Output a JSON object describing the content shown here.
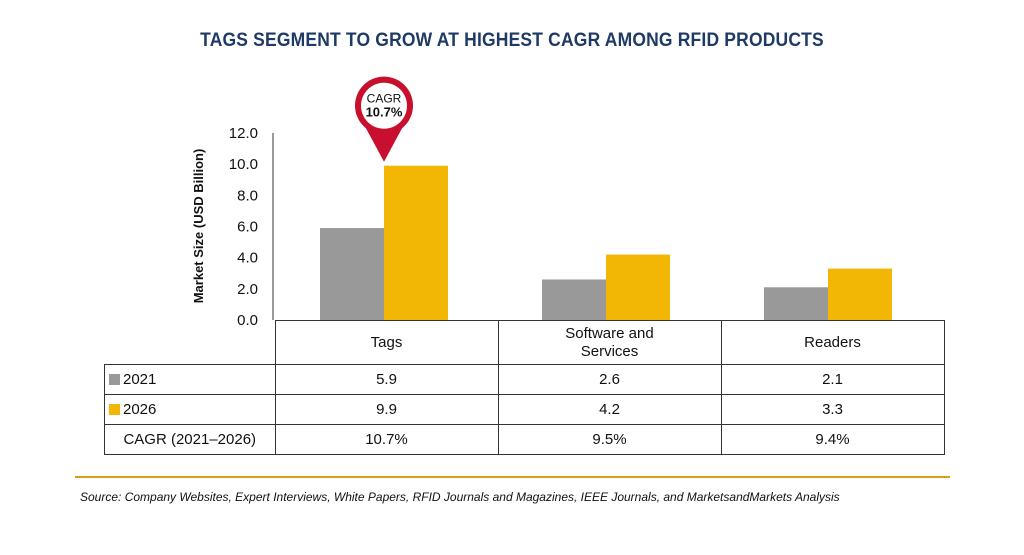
{
  "title": "TAGS SEGMENT TO GROW AT HIGHEST CAGR AMONG RFID PRODUCTS",
  "chart_data": {
    "type": "bar",
    "categories": [
      "Tags",
      "Software and\nServices",
      "Readers"
    ],
    "category_lines": [
      [
        "Tags"
      ],
      [
        "Software and",
        "Services"
      ],
      [
        "Readers"
      ]
    ],
    "series": [
      {
        "name": "2021",
        "values": [
          5.9,
          2.6,
          2.1
        ],
        "color": "#999999"
      },
      {
        "name": "2026",
        "values": [
          9.9,
          4.2,
          3.3
        ],
        "color": "#f2b705"
      }
    ],
    "ylabel": "Market Size (USD Billion)",
    "ylim": [
      0,
      12
    ],
    "yticks": [
      "0.0",
      "2.0",
      "4.0",
      "6.0",
      "8.0",
      "10.0",
      "12.0"
    ],
    "grid": false,
    "annotation": {
      "label": "CAGR",
      "value": "10.7%",
      "category_index": 0,
      "color": "#c8102e"
    },
    "table": {
      "rows": [
        {
          "label": "2021",
          "values": [
            "5.9",
            "2.6",
            "2.1"
          ],
          "color": "#999999"
        },
        {
          "label": "2026",
          "values": [
            "9.9",
            "4.2",
            "3.3"
          ],
          "color": "#f2b705"
        },
        {
          "label": "CAGR (2021–2026)",
          "values": [
            "10.7%",
            "9.5%",
            "9.4%"
          ]
        }
      ]
    }
  },
  "source": "Source: Company Websites, Expert Interviews, White Papers, RFID Journals and Magazines, IEEE Journals, and MarketsandMarkets Analysis"
}
